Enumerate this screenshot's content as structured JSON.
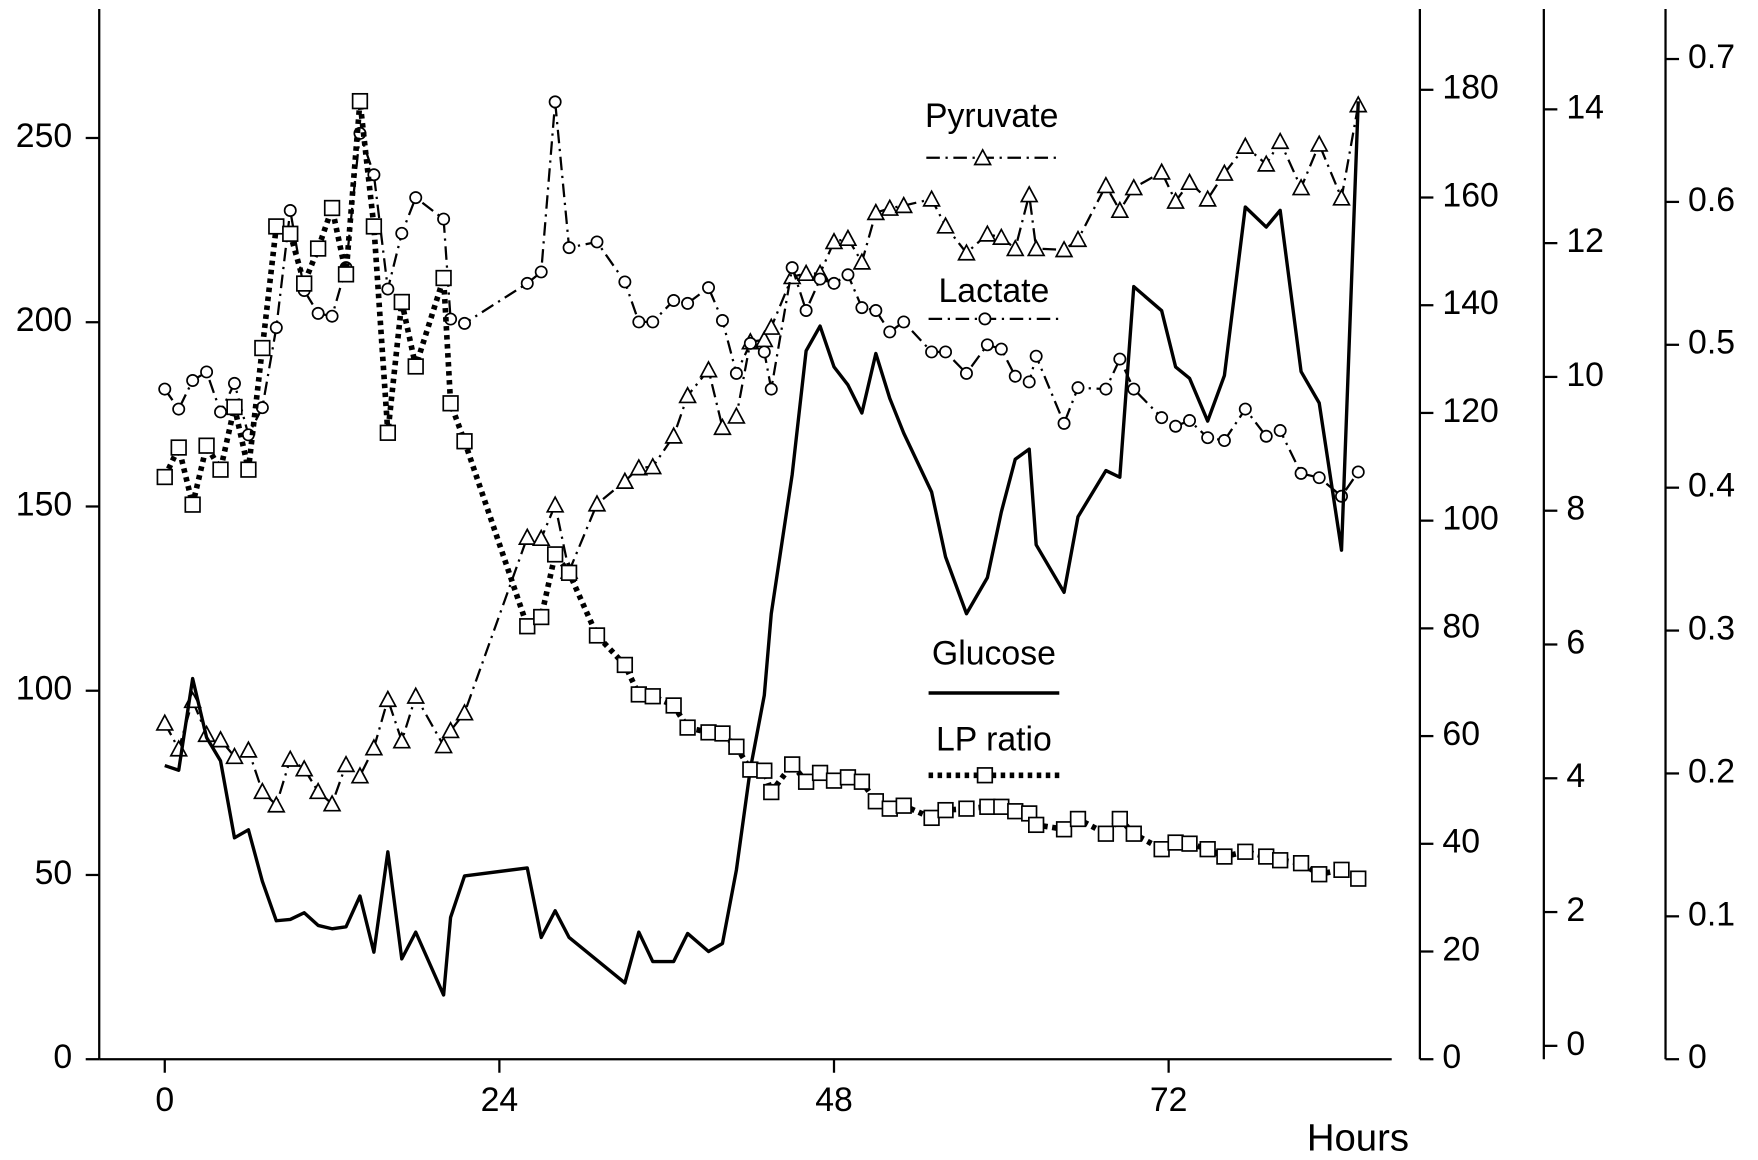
{
  "chart_data": {
    "type": "line",
    "x_label": "Hours",
    "x": [
      0,
      1,
      2,
      3,
      4,
      5,
      6,
      7,
      8,
      9,
      10,
      11,
      12,
      13,
      14,
      15,
      16,
      17,
      18,
      20,
      20.5,
      21.5,
      26,
      27,
      28,
      29,
      31,
      33,
      34,
      35,
      36.5,
      37.5,
      39,
      40,
      41,
      42,
      43,
      43.5,
      45,
      46,
      47,
      48,
      49,
      50,
      51,
      52,
      53,
      55,
      56,
      57.5,
      59,
      60,
      61,
      62,
      62.5,
      64.5,
      65.5,
      67.5,
      68.5,
      69.5,
      71.5,
      72.5,
      73.5,
      74.8,
      76,
      77.5,
      79,
      80,
      81.5,
      82.8,
      84.4,
      85.6
    ],
    "xlim": [
      -4.7,
      88
    ],
    "xticks": [
      0,
      24,
      48,
      72
    ],
    "ylim": [
      0,
      285
    ],
    "yticks": [
      0,
      50,
      100,
      150,
      200,
      250
    ],
    "y2lim": [
      0,
      195
    ],
    "y2ticks": [
      0,
      20,
      40,
      60,
      80,
      100,
      120,
      140,
      160,
      180
    ],
    "y3lim": [
      -0.2,
      15.5
    ],
    "y3ticks": [
      0,
      2,
      4,
      6,
      8,
      10,
      12,
      14
    ],
    "y4lim": [
      0,
      0.735
    ],
    "y4ticks": [
      0,
      0.1,
      0.2,
      0.3,
      0.4,
      0.5,
      0.6,
      0.7
    ],
    "series": [
      {
        "name": "Pyruvate",
        "axis": "y2",
        "color": "#000000",
        "line_style": "dashdot",
        "marker": "triangle",
        "values": [
          62.4,
          57.6,
          66.6,
          60.3,
          59.3,
          56.2,
          57.4,
          49.7,
          47.2,
          55.7,
          53.9,
          49.7,
          47.4,
          54.7,
          52.6,
          57.8,
          66.8,
          59.1,
          67.4,
          58.2,
          61,
          64.3,
          96.9,
          96.7,
          102.9,
          90.6,
          103.1,
          107.3,
          109.8,
          110,
          115.7,
          123.2,
          128,
          117.3,
          119.4,
          133.2,
          133.6,
          135.9,
          145.3,
          145.9,
          145.9,
          151.8,
          152.4,
          148,
          157.2,
          158,
          158.5,
          159.7,
          154.7,
          149.7,
          153.2,
          152.6,
          150.5,
          160.5,
          150.5,
          150.3,
          152.2,
          162.2,
          157.6,
          161.8,
          164.7,
          159.3,
          162.8,
          159.7,
          164.5,
          169.5,
          166.2,
          170.4,
          161.8,
          169.9,
          159.9,
          177.2
        ]
      },
      {
        "name": "Lactate",
        "axis": "y4",
        "color": "#000000",
        "line_style": "dashdot",
        "marker": "circle",
        "values": [
          0.469,
          0.455,
          0.475,
          0.481,
          0.453,
          0.473,
          0.437,
          0.456,
          0.512,
          0.594,
          0.538,
          0.522,
          0.52,
          0.554,
          0.648,
          0.619,
          0.539,
          0.578,
          0.603,
          0.588,
          0.518,
          0.515,
          0.543,
          0.551,
          0.67,
          0.568,
          0.572,
          0.544,
          0.516,
          0.516,
          0.531,
          0.529,
          0.54,
          0.517,
          0.48,
          0.501,
          0.495,
          0.469,
          0.554,
          0.524,
          0.546,
          0.543,
          0.549,
          0.526,
          0.524,
          0.509,
          0.516,
          0.495,
          0.495,
          0.48,
          0.5,
          0.497,
          0.478,
          0.474,
          0.492,
          0.445,
          0.47,
          0.469,
          0.49,
          0.469,
          0.449,
          0.443,
          0.447,
          0.435,
          0.433,
          0.455,
          0.436,
          0.44,
          0.41,
          0.407,
          0.394,
          0.411
        ]
      },
      {
        "name": "Glucose",
        "axis": "y3",
        "color": "#000000",
        "line_style": "solid",
        "values": [
          4.19,
          4.12,
          5.49,
          4.61,
          4.26,
          3.11,
          3.23,
          2.46,
          1.87,
          1.89,
          1.99,
          1.8,
          1.75,
          1.78,
          2.24,
          1.4,
          2.9,
          1.3,
          1.7,
          0.76,
          1.92,
          2.54,
          2.66,
          1.62,
          2.02,
          1.62,
          1.28,
          0.94,
          1.7,
          1.26,
          1.26,
          1.68,
          1.41,
          1.53,
          2.63,
          4.14,
          5.24,
          6.46,
          8.54,
          10.39,
          10.76,
          10.15,
          9.88,
          9.46,
          10.35,
          9.68,
          9.16,
          8.28,
          7.31,
          6.46,
          7,
          7.98,
          8.77,
          8.92,
          7.49,
          6.78,
          7.91,
          8.6,
          8.5,
          11.35,
          10.99,
          10.15,
          9.98,
          9.34,
          10.02,
          12.54,
          12.24,
          12.49,
          10.08,
          9.61,
          7.41,
          14.12
        ]
      },
      {
        "name": "LP ratio",
        "axis": "y",
        "color": "#000000",
        "line_style": "dotted",
        "marker": "square",
        "values": [
          158,
          166,
          150.5,
          166.5,
          160,
          177,
          160,
          193,
          226,
          224,
          210.5,
          220,
          231,
          213,
          260,
          226,
          170,
          205.5,
          188,
          212,
          178,
          167.7,
          117.5,
          120,
          137,
          132,
          115,
          107,
          99,
          98.5,
          96,
          90,
          88.7,
          88.4,
          84.8,
          78.6,
          78.3,
          72.5,
          80,
          75.3,
          77.7,
          75.6,
          76.5,
          75.3,
          70,
          68,
          68.8,
          65.5,
          67.6,
          68,
          68.5,
          68.5,
          67.3,
          66.7,
          63.6,
          62.4,
          65.2,
          61.2,
          65.2,
          61.2,
          57,
          58.8,
          58.5,
          57,
          55,
          56.3,
          55,
          54,
          53.2,
          50.2,
          51.4,
          49
        ]
      }
    ]
  }
}
